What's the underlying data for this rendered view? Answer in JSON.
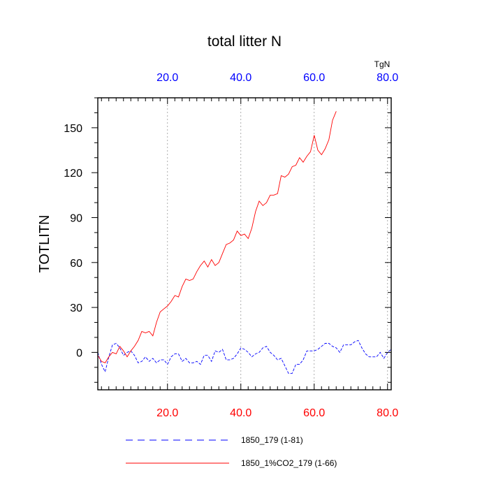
{
  "chart_data": {
    "type": "line",
    "title": "total litter N",
    "ylabel": "TOTLITN",
    "units": "TgN",
    "xlim": [
      1,
      81
    ],
    "ylim": [
      -25,
      170
    ],
    "xticks": [
      20,
      40,
      60,
      80
    ],
    "xtick_labels": [
      "20.0",
      "40.0",
      "60.0",
      "80.0"
    ],
    "yticks": [
      0,
      30,
      60,
      90,
      120,
      150
    ],
    "ytick_labels": [
      "0",
      "30",
      "60",
      "90",
      "120",
      "150"
    ],
    "grid": "x-dotted",
    "bottom_axis_color": "#ff0000",
    "top_axis_color": "#0000ff",
    "series": [
      {
        "name": "1850_179 (1-81)",
        "color": "#0000ff",
        "style": "dashed",
        "x": [
          1,
          2,
          3,
          4,
          5,
          6,
          7,
          8,
          9,
          10,
          11,
          12,
          13,
          14,
          15,
          16,
          17,
          18,
          19,
          20,
          21,
          22,
          23,
          24,
          25,
          26,
          27,
          28,
          29,
          30,
          31,
          32,
          33,
          34,
          35,
          36,
          37,
          38,
          39,
          40,
          41,
          42,
          43,
          44,
          45,
          46,
          47,
          48,
          49,
          50,
          51,
          52,
          53,
          54,
          55,
          56,
          57,
          58,
          59,
          60,
          61,
          62,
          63,
          64,
          65,
          66,
          67,
          68,
          69,
          70,
          71,
          72,
          73,
          74,
          75,
          76,
          77,
          78,
          79,
          80,
          81
        ],
        "values": [
          0,
          -8,
          -13,
          -3,
          5,
          6,
          3,
          -2,
          0,
          1,
          -2,
          -7,
          -6,
          -3,
          -6,
          -4,
          -7,
          -5,
          -5,
          -8,
          -3,
          -1,
          -1,
          -6,
          -4,
          -7,
          -7,
          -6,
          -8,
          -2,
          -2,
          -6,
          1,
          0,
          2,
          -5,
          -5,
          -4,
          -1,
          3,
          2,
          0,
          -3,
          -1,
          0,
          3,
          4,
          0,
          -2,
          -5,
          -4,
          -9,
          -14,
          -14,
          -8,
          -8,
          -5,
          1,
          1,
          1,
          2,
          4,
          6,
          6,
          4,
          3,
          0,
          5,
          5,
          5,
          7,
          8,
          3,
          -1,
          -3,
          -3,
          -3,
          0,
          -4,
          0,
          2
        ]
      },
      {
        "name": "1850_1%CO2_179 (1-66)",
        "color": "#ff0000",
        "style": "solid",
        "x": [
          1,
          2,
          3,
          4,
          5,
          6,
          7,
          8,
          9,
          10,
          11,
          12,
          13,
          14,
          15,
          16,
          17,
          18,
          19,
          20,
          21,
          22,
          23,
          24,
          25,
          26,
          27,
          28,
          29,
          30,
          31,
          32,
          33,
          34,
          35,
          36,
          37,
          38,
          39,
          40,
          41,
          42,
          43,
          44,
          45,
          46,
          47,
          48,
          49,
          50,
          51,
          52,
          53,
          54,
          55,
          56,
          57,
          58,
          59,
          60,
          61,
          62,
          63,
          64,
          65,
          66
        ],
        "values": [
          -2,
          -6,
          -7,
          -3,
          0,
          -1,
          4,
          1,
          -3,
          1,
          4,
          8,
          14,
          13,
          14,
          11,
          20,
          27,
          29,
          31,
          34,
          38,
          37,
          44,
          49,
          48,
          49,
          54,
          58,
          61,
          57,
          62,
          58,
          60,
          66,
          72,
          73,
          75,
          81,
          78,
          79,
          76,
          83,
          94,
          101,
          98,
          100,
          105,
          105,
          106,
          118,
          117,
          119,
          124,
          125,
          130,
          127,
          131,
          134,
          145,
          135,
          132,
          136,
          142,
          155,
          161
        ]
      }
    ]
  }
}
